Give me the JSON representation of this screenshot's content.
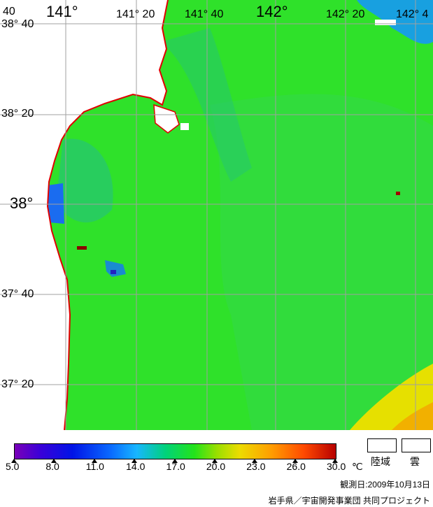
{
  "map": {
    "lat_labels": [
      {
        "text": "38° 40"
      },
      {
        "text": "38° 20"
      },
      {
        "text": "38°"
      },
      {
        "text": "37° 40"
      },
      {
        "text": "37° 20"
      }
    ],
    "lon_labels": [
      {
        "text": "141°"
      },
      {
        "text": "141° 20"
      },
      {
        "text": "141° 40"
      },
      {
        "text": "142°"
      },
      {
        "text": "142° 20"
      },
      {
        "text": "142° 4"
      }
    ],
    "corner_label": "40",
    "colors": {
      "sea_main": "#2fe12a",
      "sea_shade": "#55d633",
      "sea_cool": "#27c86b",
      "coast": "#e00000",
      "land": "#ffffff",
      "grid": "#a0a0a0"
    }
  },
  "colorbar": {
    "tick_labels": [
      "5.0",
      "8.0",
      "11.0",
      "14.0",
      "17.0",
      "20.0",
      "23.0",
      "26.0",
      "30.0"
    ],
    "unit": "℃",
    "min": 5.0,
    "max": 30.0
  },
  "legend": {
    "land": "陸域",
    "cloud": "雲"
  },
  "footer": {
    "observation_date": "観測日:2009年10月13日",
    "credit": "岩手県／宇宙開発事業団 共同プロジェクト"
  }
}
